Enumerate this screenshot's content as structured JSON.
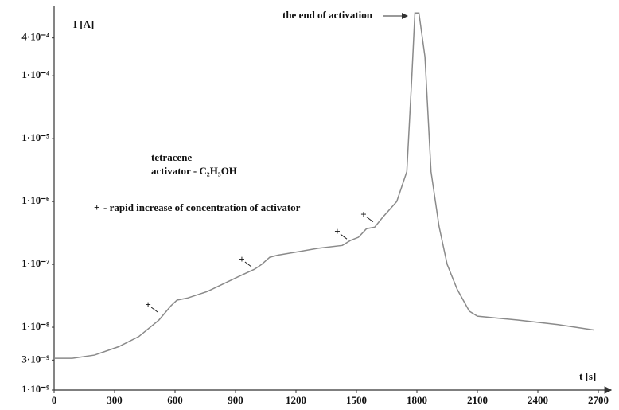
{
  "chart_data": {
    "type": "line",
    "x_label": "t [s]",
    "y_label": "I [A]",
    "x": [
      0,
      90,
      200,
      320,
      420,
      520,
      580,
      610,
      660,
      760,
      920,
      995,
      1030,
      1070,
      1110,
      1310,
      1430,
      1470,
      1510,
      1550,
      1590,
      1630,
      1700,
      1750,
      1775,
      1790,
      1810,
      1840,
      1870,
      1910,
      1950,
      2000,
      2060,
      2100,
      2300,
      2500,
      2680
    ],
    "series": [
      {
        "color": "#8a8a8a",
        "values": [
          3.2e-09,
          3.2e-09,
          3.6e-09,
          4.9e-09,
          7.1e-09,
          1.3e-08,
          2.2e-08,
          2.7e-08,
          2.9e-08,
          3.7e-08,
          6.5e-08,
          8.4e-08,
          1e-07,
          1.3e-07,
          1.4e-07,
          1.8e-07,
          2e-07,
          2.4e-07,
          2.7e-07,
          3.7e-07,
          3.9e-07,
          5.6e-07,
          1e-06,
          3e-06,
          0.0001,
          0.001,
          0.001,
          0.0002,
          3e-06,
          4e-07,
          1e-07,
          4e-08,
          1.8e-08,
          1.5e-08,
          1.3e-08,
          1.1e-08,
          9e-09
        ]
      }
    ],
    "xlim": [
      0,
      2700
    ],
    "xticks": [
      0,
      300,
      600,
      900,
      1200,
      1500,
      1800,
      2100,
      2400,
      2700
    ],
    "ylim": [
      1e-09,
      0.0012
    ],
    "log_y": true,
    "yticks": [
      {
        "value": 1e-09,
        "label": "1·10⁻⁹"
      },
      {
        "value": 3e-09,
        "label": "3·10⁻⁹"
      },
      {
        "value": 1e-08,
        "label": "1·10⁻⁸"
      },
      {
        "value": 1e-07,
        "label": "1·10⁻⁷"
      },
      {
        "value": 1e-06,
        "label": "1·10⁻⁶"
      },
      {
        "value": 1e-05,
        "label": "1·10⁻⁵"
      },
      {
        "value": 0.0001,
        "label": "1·10⁻⁴"
      },
      {
        "value": 0.0004,
        "label": "4·10⁻⁴"
      }
    ],
    "markers": {
      "symbol": "+",
      "x": [
        482,
        947,
        1421,
        1551
      ],
      "y": [
        2.2e-08,
        1.16e-07,
        3.2e-07,
        6e-07
      ]
    },
    "annotations": [
      "the end of activation",
      "tetracene",
      "activator - C₂H₅OH",
      "- rapid increase of concentration of activator"
    ]
  }
}
